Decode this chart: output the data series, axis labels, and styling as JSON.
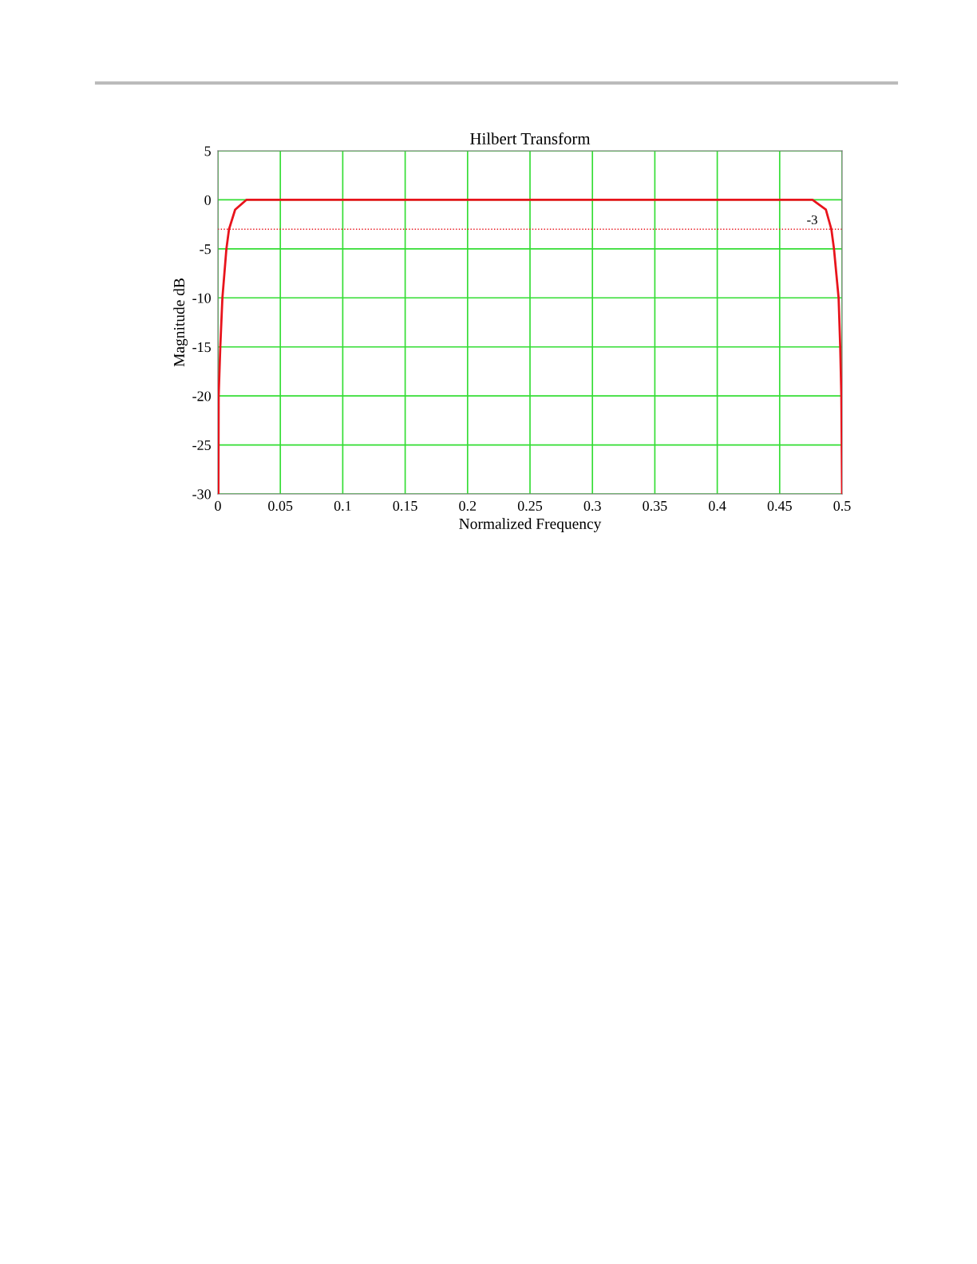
{
  "chart_data": {
    "type": "line",
    "title": "Hilbert Transform",
    "xlabel": "Normalized Frequency",
    "ylabel": "Magnitude dB",
    "series": [
      {
        "color": "#e8141c",
        "x": [
          0.0,
          0.0004,
          0.0006,
          0.0019,
          0.0036,
          0.0068,
          0.0089,
          0.0138,
          0.0228,
          0.25,
          0.4763,
          0.487,
          0.4914,
          0.4935,
          0.4972,
          0.4985,
          0.4994,
          0.5
        ],
        "values": [
          -30,
          -30,
          -20,
          -15,
          -10,
          -5,
          -3,
          -1,
          0,
          0,
          0,
          -1,
          -3,
          -5,
          -10,
          -15,
          -20,
          -30
        ]
      }
    ],
    "ref_lines": [
      {
        "axis": "y",
        "value": -3,
        "label": "-3",
        "color": "#e8141c",
        "line_style": "dotted"
      }
    ],
    "xlim": [
      0,
      0.5
    ],
    "ylim": [
      -30,
      5
    ],
    "xticks": [
      0,
      0.05,
      0.1,
      0.15,
      0.2,
      0.25,
      0.3,
      0.35,
      0.4,
      0.45,
      0.5
    ],
    "yticks": [
      5,
      0,
      -5,
      -10,
      -15,
      -20,
      -25,
      -30
    ],
    "grid": true,
    "legend": false
  }
}
